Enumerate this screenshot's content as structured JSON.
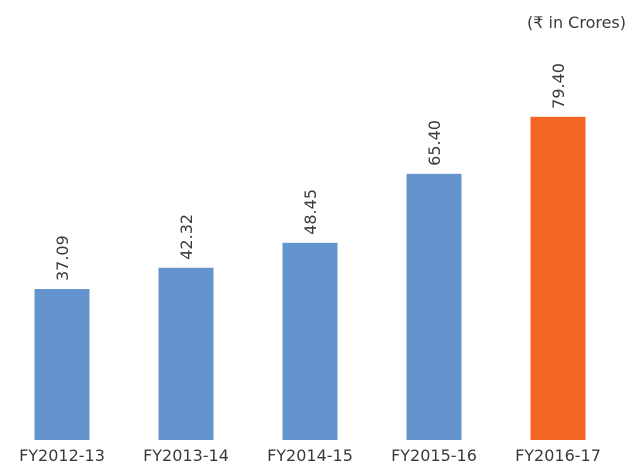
{
  "chart_data": {
    "type": "bar",
    "subtitle": "(₹ in Crores)",
    "categories": [
      "FY2012-13",
      "FY2013-14",
      "FY2014-15",
      "FY2015-16",
      "FY2016-17"
    ],
    "values": [
      37.09,
      42.32,
      48.45,
      65.4,
      79.4
    ],
    "value_labels": [
      "37.09",
      "42.32",
      "48.45",
      "65.40",
      "79.40"
    ],
    "colors": [
      "#6494cd",
      "#6494cd",
      "#6494cd",
      "#6494cd",
      "#f26522"
    ]
  }
}
